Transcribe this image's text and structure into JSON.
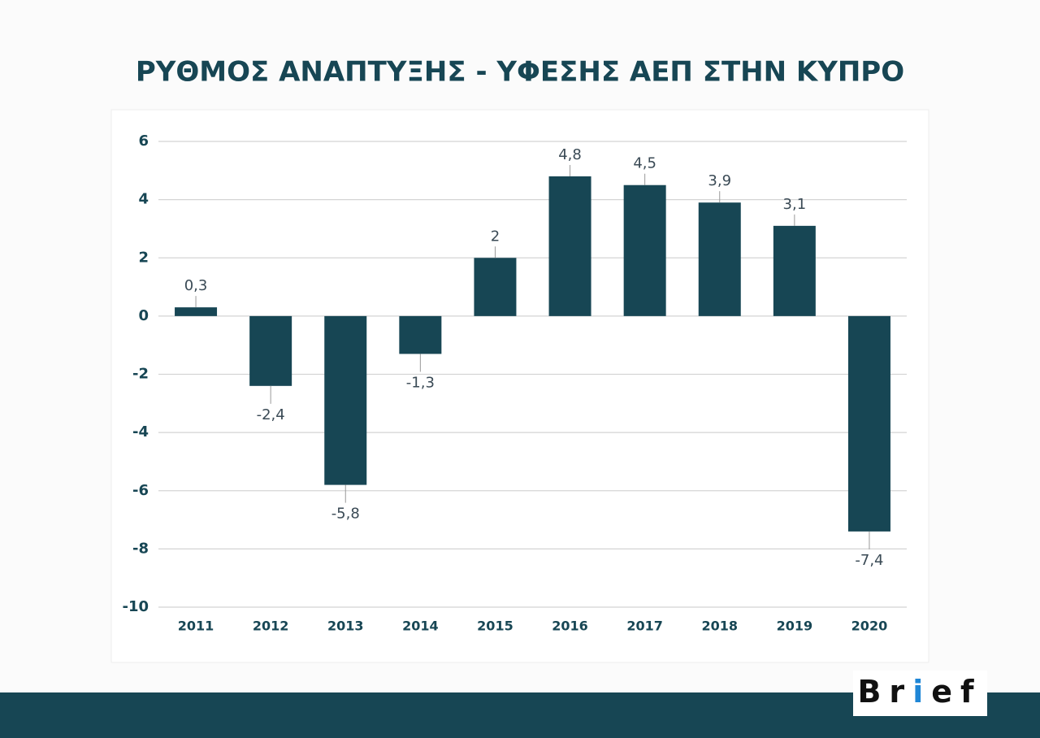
{
  "chart_data": {
    "type": "bar",
    "title": "ΡΥΘΜΟΣ ΑΝΑΠΤΥΞΗΣ - ΥΦΕΣΗΣ ΑΕΠ ΣΤΗΝ ΚΥΠΡΟ",
    "categories": [
      "2011",
      "2012",
      "2013",
      "2014",
      "2015",
      "2016",
      "2017",
      "2018",
      "2019",
      "2020"
    ],
    "values": [
      0.3,
      -2.4,
      -5.8,
      -1.3,
      2,
      4.8,
      4.5,
      3.9,
      3.1,
      -7.4
    ],
    "value_labels": [
      "0,3",
      "-2,4",
      "-5,8",
      "-1,3",
      "2",
      "4,8",
      "4,5",
      "3,9",
      "3,1",
      "-7,4"
    ],
    "color": "#174654",
    "ylim": [
      -10,
      6
    ],
    "yticks": [
      6,
      4,
      2,
      0,
      -2,
      -4,
      -6,
      -8,
      -10
    ],
    "grid": true
  },
  "brand": [
    "Br",
    "i",
    "ef"
  ]
}
